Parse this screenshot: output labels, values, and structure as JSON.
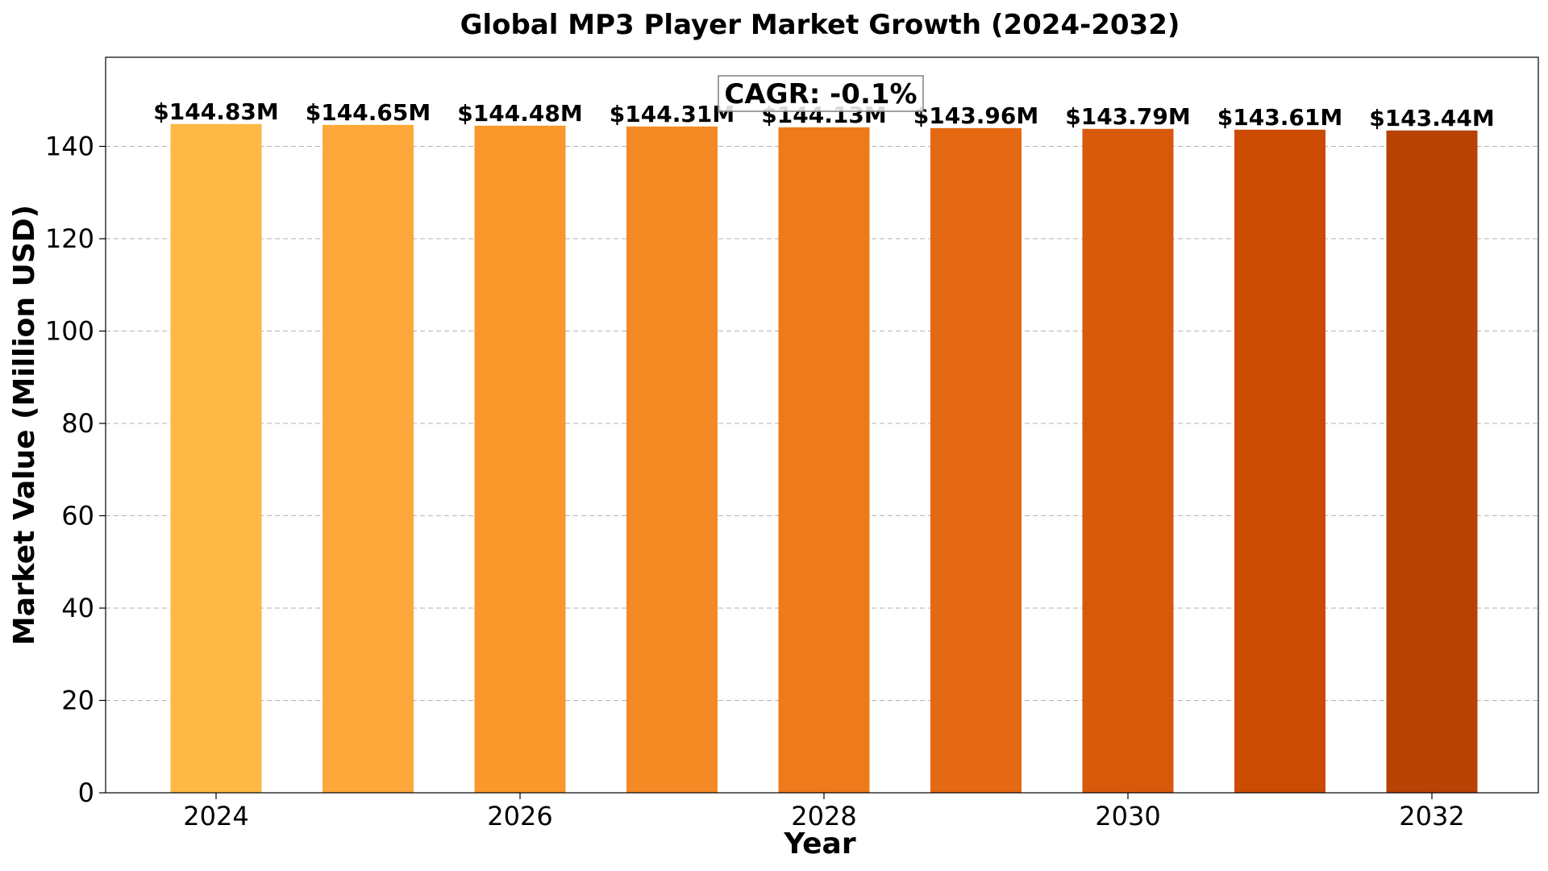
{
  "chart_data": {
    "type": "bar",
    "title": "Global MP3 Player Market Growth (2024-2032)",
    "xlabel": "Year",
    "ylabel": "Market Value (Million USD)",
    "categories": [
      "2024",
      "2025",
      "2026",
      "2027",
      "2028",
      "2029",
      "2030",
      "2031",
      "2032"
    ],
    "values": [
      144.83,
      144.65,
      144.48,
      144.31,
      144.13,
      143.96,
      143.79,
      143.61,
      143.44
    ],
    "value_labels": [
      "$144.83M",
      "$144.65M",
      "$144.48M",
      "$144.31M",
      "$144.13M",
      "$143.96M",
      "$143.79M",
      "$143.61M",
      "$143.44M"
    ],
    "x_ticks": [
      "2024",
      "2026",
      "2028",
      "2030",
      "2032"
    ],
    "y_ticks": [
      0,
      20,
      40,
      60,
      80,
      100,
      120,
      140
    ],
    "ylim": [
      0,
      159.3
    ],
    "grid": "y-dashed",
    "annotation": "CAGR: -0.1%",
    "colors": [
      "#feb845",
      "#fda83a",
      "#fa982b",
      "#f58923",
      "#ef7a1b",
      "#e56912",
      "#d9590b",
      "#cb4b03",
      "#b64204"
    ]
  }
}
